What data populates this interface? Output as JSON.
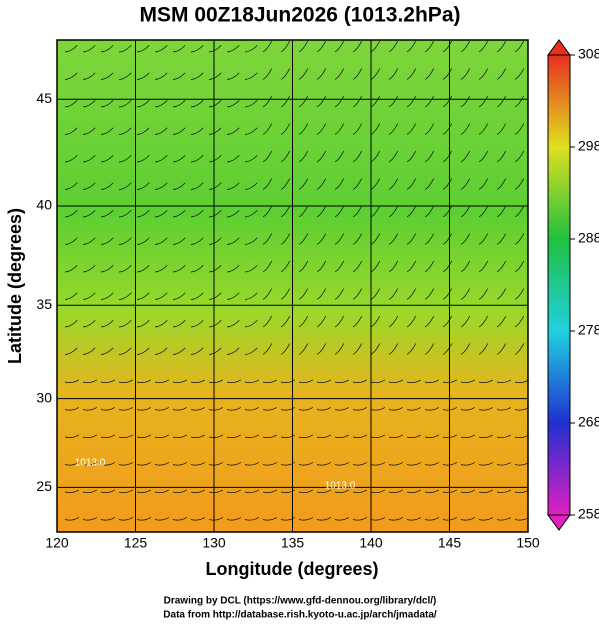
{
  "title": "MSM 00Z18Jun2026 (1013.2hPa)",
  "map": {
    "xlabel": "Longitude (degrees)",
    "ylabel": "Latitude  (degrees)",
    "xlim": [
      120,
      150
    ],
    "ylim": [
      22.4,
      47.6
    ],
    "xticks": [
      120,
      125,
      130,
      135,
      140,
      145,
      150
    ],
    "yticks": [
      25,
      30,
      35,
      40,
      45
    ],
    "contour_labels": [
      "1013.0",
      "1013.0"
    ]
  },
  "colorbar": {
    "lim": [
      258,
      308
    ],
    "ticks": [
      258,
      268,
      278,
      288,
      298,
      308
    ]
  },
  "footer": [
    "Drawing by DCL (https://www.gfd-dennou.org/library/dcl/)",
    "Data from http://database.rish.kyoto-u.ac.jp/arch/jmadata/"
  ]
}
